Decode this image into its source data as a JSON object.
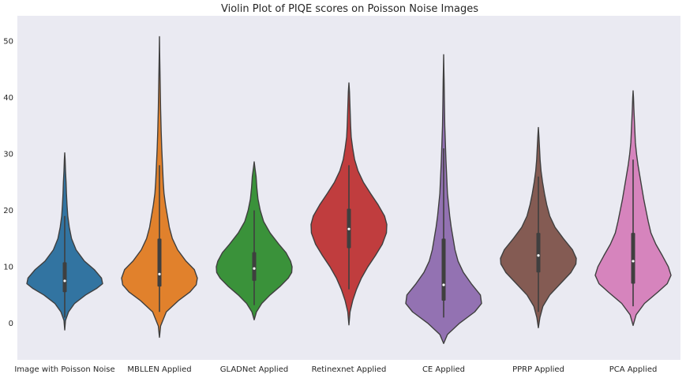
{
  "chart_data": {
    "type": "violin",
    "title": "Violin Plot of PIQE scores on Poisson Noise Images",
    "xlabel": "",
    "ylabel": "",
    "ylim": [
      -6.5,
      54.5
    ],
    "y_ticks": [
      0,
      10,
      20,
      30,
      40,
      50
    ],
    "grid": false,
    "background": "#eaeaf2",
    "categories": [
      "Image with Poisson Noise",
      "MBLLEN Applied",
      "GLADNet Applied",
      "Retinexnet Applied",
      "CE Applied",
      "PPRP Applied",
      "PCA Applied"
    ],
    "series": [
      {
        "color": "#3274a1",
        "min": -1.2,
        "max": 30.2,
        "q1": 5.5,
        "median": 7.5,
        "q3": 10.8,
        "whisker_low": 1.0,
        "whisker_high": 19.0,
        "density": [
          [
            -1.2,
            0.0
          ],
          [
            0.5,
            0.02
          ],
          [
            2.0,
            0.1
          ],
          [
            3.5,
            0.26
          ],
          [
            5.0,
            0.55
          ],
          [
            6.2,
            0.85
          ],
          [
            7.0,
            1.0
          ],
          [
            8.0,
            0.97
          ],
          [
            9.5,
            0.78
          ],
          [
            11.0,
            0.52
          ],
          [
            13.0,
            0.3
          ],
          [
            15.0,
            0.18
          ],
          [
            17.0,
            0.12
          ],
          [
            19.0,
            0.08
          ],
          [
            21.0,
            0.06
          ],
          [
            23.0,
            0.045
          ],
          [
            25.0,
            0.035
          ],
          [
            27.0,
            0.02
          ],
          [
            29.0,
            0.01
          ],
          [
            30.2,
            0.0
          ]
        ]
      },
      {
        "color": "#e1812c",
        "min": -2.5,
        "max": 50.8,
        "q1": 6.5,
        "median": 8.7,
        "q3": 15.0,
        "whisker_low": 2.0,
        "whisker_high": 28.0,
        "density": [
          [
            -2.5,
            0.0
          ],
          [
            -0.5,
            0.03
          ],
          [
            2.0,
            0.18
          ],
          [
            4.0,
            0.5
          ],
          [
            5.5,
            0.8
          ],
          [
            6.8,
            0.97
          ],
          [
            8.0,
            1.0
          ],
          [
            9.5,
            0.92
          ],
          [
            11.0,
            0.7
          ],
          [
            13.0,
            0.48
          ],
          [
            15.0,
            0.34
          ],
          [
            17.0,
            0.26
          ],
          [
            19.0,
            0.21
          ],
          [
            21.0,
            0.16
          ],
          [
            23.0,
            0.12
          ],
          [
            25.0,
            0.1
          ],
          [
            28.0,
            0.08
          ],
          [
            31.0,
            0.06
          ],
          [
            34.0,
            0.045
          ],
          [
            38.0,
            0.03
          ],
          [
            42.0,
            0.02
          ],
          [
            46.0,
            0.01
          ],
          [
            48.0,
            0.005
          ],
          [
            50.8,
            0.0
          ]
        ]
      },
      {
        "color": "#3a923a",
        "min": 0.6,
        "max": 28.6,
        "q1": 7.5,
        "median": 9.7,
        "q3": 12.6,
        "whisker_low": 3.2,
        "whisker_high": 20.0,
        "density": [
          [
            0.6,
            0.0
          ],
          [
            2.0,
            0.06
          ],
          [
            3.5,
            0.2
          ],
          [
            5.0,
            0.42
          ],
          [
            6.5,
            0.68
          ],
          [
            8.0,
            0.9
          ],
          [
            9.0,
            0.99
          ],
          [
            10.0,
            1.0
          ],
          [
            11.0,
            0.96
          ],
          [
            12.5,
            0.84
          ],
          [
            14.0,
            0.65
          ],
          [
            16.0,
            0.42
          ],
          [
            18.0,
            0.25
          ],
          [
            20.0,
            0.16
          ],
          [
            22.0,
            0.1
          ],
          [
            24.0,
            0.07
          ],
          [
            26.0,
            0.05
          ],
          [
            27.5,
            0.02
          ],
          [
            28.6,
            0.0
          ]
        ]
      },
      {
        "color": "#c03d3e",
        "min": -0.3,
        "max": 42.6,
        "q1": 13.3,
        "median": 16.7,
        "q3": 20.3,
        "whisker_low": 6.0,
        "whisker_high": 28.0,
        "density": [
          [
            -0.3,
            0.0
          ],
          [
            2.0,
            0.03
          ],
          [
            4.0,
            0.1
          ],
          [
            6.0,
            0.2
          ],
          [
            8.0,
            0.33
          ],
          [
            10.0,
            0.5
          ],
          [
            12.0,
            0.7
          ],
          [
            14.0,
            0.88
          ],
          [
            16.0,
            0.99
          ],
          [
            17.5,
            1.0
          ],
          [
            19.0,
            0.94
          ],
          [
            21.0,
            0.77
          ],
          [
            23.0,
            0.57
          ],
          [
            25.0,
            0.38
          ],
          [
            27.0,
            0.24
          ],
          [
            29.0,
            0.15
          ],
          [
            31.0,
            0.1
          ],
          [
            33.0,
            0.06
          ],
          [
            35.0,
            0.045
          ],
          [
            38.0,
            0.03
          ],
          [
            41.0,
            0.015
          ],
          [
            42.6,
            0.0
          ]
        ]
      },
      {
        "color": "#9372b2",
        "min": -3.6,
        "max": 47.6,
        "q1": 4.0,
        "median": 6.8,
        "q3": 15.0,
        "whisker_low": 1.0,
        "whisker_high": 31.0,
        "density": [
          [
            -3.6,
            0.0
          ],
          [
            -2.0,
            0.1
          ],
          [
            0.0,
            0.42
          ],
          [
            2.0,
            0.82
          ],
          [
            3.5,
            1.0
          ],
          [
            5.0,
            0.97
          ],
          [
            7.0,
            0.73
          ],
          [
            9.0,
            0.52
          ],
          [
            11.0,
            0.38
          ],
          [
            13.0,
            0.3
          ],
          [
            15.0,
            0.25
          ],
          [
            17.0,
            0.2
          ],
          [
            19.0,
            0.16
          ],
          [
            21.0,
            0.13
          ],
          [
            23.0,
            0.1
          ],
          [
            26.0,
            0.08
          ],
          [
            29.0,
            0.06
          ],
          [
            32.0,
            0.045
          ],
          [
            35.0,
            0.03
          ],
          [
            39.0,
            0.02
          ],
          [
            43.0,
            0.012
          ],
          [
            45.0,
            0.006
          ],
          [
            47.6,
            0.0
          ]
        ]
      },
      {
        "color": "#845b53",
        "min": -0.8,
        "max": 34.7,
        "q1": 9.0,
        "median": 12.0,
        "q3": 16.0,
        "whisker_low": 2.0,
        "whisker_high": 26.0,
        "density": [
          [
            -0.8,
            0.0
          ],
          [
            1.0,
            0.04
          ],
          [
            3.0,
            0.12
          ],
          [
            5.0,
            0.3
          ],
          [
            7.0,
            0.58
          ],
          [
            9.0,
            0.86
          ],
          [
            10.5,
            0.99
          ],
          [
            11.5,
            1.0
          ],
          [
            13.0,
            0.9
          ],
          [
            15.0,
            0.66
          ],
          [
            17.0,
            0.44
          ],
          [
            19.0,
            0.3
          ],
          [
            21.0,
            0.22
          ],
          [
            23.0,
            0.16
          ],
          [
            25.0,
            0.11
          ],
          [
            27.0,
            0.07
          ],
          [
            29.0,
            0.045
          ],
          [
            31.0,
            0.03
          ],
          [
            33.0,
            0.015
          ],
          [
            34.7,
            0.0
          ]
        ]
      },
      {
        "color": "#d684bd",
        "min": -0.4,
        "max": 41.2,
        "q1": 7.0,
        "median": 11.0,
        "q3": 16.0,
        "whisker_low": 3.0,
        "whisker_high": 29.0,
        "density": [
          [
            -0.4,
            0.0
          ],
          [
            1.5,
            0.08
          ],
          [
            3.5,
            0.3
          ],
          [
            5.5,
            0.65
          ],
          [
            7.0,
            0.9
          ],
          [
            8.5,
            1.0
          ],
          [
            10.0,
            0.93
          ],
          [
            12.0,
            0.77
          ],
          [
            14.0,
            0.6
          ],
          [
            16.0,
            0.47
          ],
          [
            18.0,
            0.4
          ],
          [
            20.0,
            0.34
          ],
          [
            22.0,
            0.28
          ],
          [
            24.0,
            0.23
          ],
          [
            26.0,
            0.18
          ],
          [
            28.0,
            0.13
          ],
          [
            30.0,
            0.09
          ],
          [
            32.0,
            0.06
          ],
          [
            35.0,
            0.04
          ],
          [
            38.0,
            0.02
          ],
          [
            40.0,
            0.01
          ],
          [
            41.2,
            0.0
          ]
        ]
      }
    ]
  }
}
